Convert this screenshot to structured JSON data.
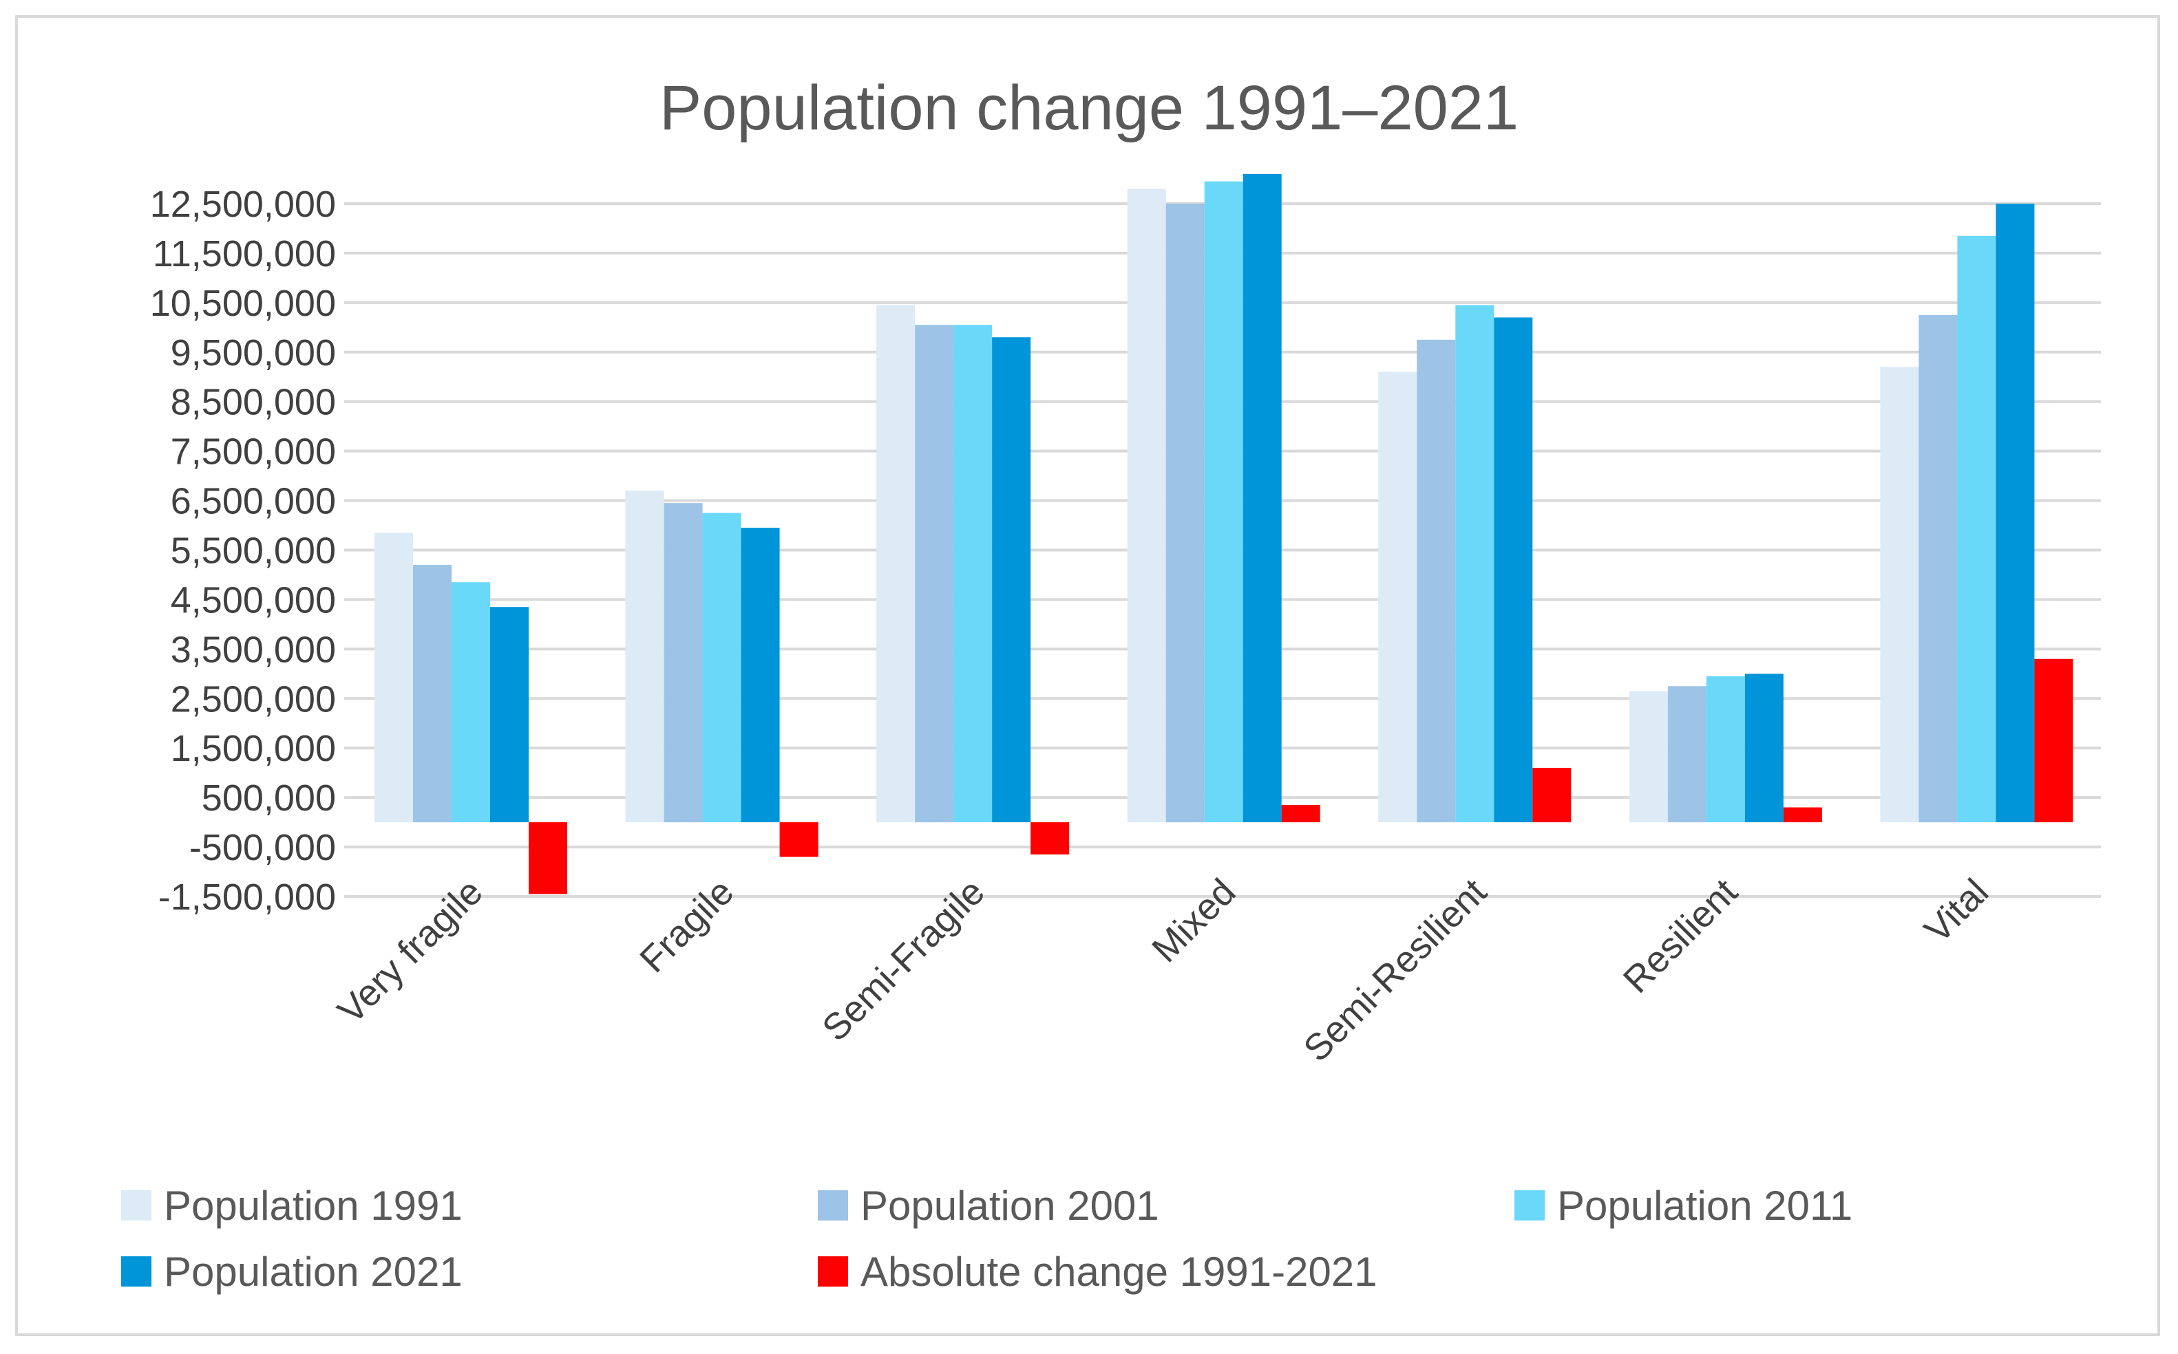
{
  "chart_data": {
    "type": "bar",
    "title": "Population change 1991–2021",
    "xlabel": "",
    "ylabel": "",
    "ylim": [
      -1500000,
      13000000
    ],
    "yticks": [
      12500000,
      11500000,
      10500000,
      9500000,
      8500000,
      7500000,
      6500000,
      5500000,
      4500000,
      3500000,
      2500000,
      1500000,
      500000,
      -500000,
      -1500000
    ],
    "ytick_labels": [
      "12,500,000",
      "11,500,000",
      "10,500,000",
      "9,500,000",
      "8,500,000",
      "7,500,000",
      "6,500,000",
      "5,500,000",
      "4,500,000",
      "3,500,000",
      "2,500,000",
      "1,500,000",
      "500,000",
      "-500,000",
      "-1,500,000"
    ],
    "grid": true,
    "legend_position": "bottom",
    "categories": [
      "Very fragile",
      "Fragile",
      "Semi-Fragile",
      "Mixed",
      "Semi-Resilient",
      "Resilient",
      "Vital"
    ],
    "series": [
      {
        "name": "Population 1991",
        "color": "#ddebf7",
        "values": [
          5850000,
          6700000,
          10450000,
          12800000,
          9100000,
          2650000,
          9200000
        ]
      },
      {
        "name": "Population 2001",
        "color": "#9dc3e6",
        "values": [
          5200000,
          6450000,
          10050000,
          12500000,
          9750000,
          2750000,
          10250000
        ]
      },
      {
        "name": "Population 2011",
        "color": "#6ad8f8",
        "values": [
          4850000,
          6250000,
          10050000,
          12950000,
          10450000,
          2950000,
          11850000
        ]
      },
      {
        "name": "Population 2021",
        "color": "#0095d9",
        "values": [
          4350000,
          5950000,
          9800000,
          13100000,
          10200000,
          3000000,
          12500000
        ]
      },
      {
        "name": "Absolute change 1991-2021",
        "color": "#ff0000",
        "values": [
          -1450000,
          -700000,
          -650000,
          350000,
          1100000,
          300000,
          3300000
        ]
      }
    ]
  }
}
